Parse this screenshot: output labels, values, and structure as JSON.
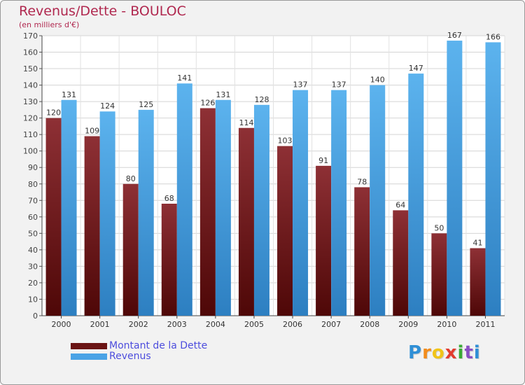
{
  "chart_data": {
    "type": "bar",
    "title": "Revenus/Dette - BOULOC",
    "subtitle": "(en milliers d'€)",
    "categories": [
      "2000",
      "2001",
      "2002",
      "2003",
      "2004",
      "2005",
      "2006",
      "2007",
      "2008",
      "2009",
      "2010",
      "2011"
    ],
    "series": [
      {
        "name": "Montant de la Dette",
        "color": "#7a1c1c",
        "values": [
          120,
          109,
          80,
          68,
          126,
          114,
          103,
          91,
          78,
          64,
          50,
          41
        ]
      },
      {
        "name": "Revenus",
        "color": "#4aa3e6",
        "values": [
          131,
          124,
          125,
          141,
          131,
          128,
          137,
          137,
          140,
          147,
          167,
          166
        ]
      }
    ],
    "ylim": [
      0,
      170
    ],
    "yticks": [
      0,
      10,
      20,
      30,
      40,
      50,
      60,
      70,
      80,
      90,
      100,
      110,
      120,
      130,
      140,
      150,
      160,
      170
    ],
    "grid": true,
    "legend_position": "bottom-left"
  },
  "brand": {
    "letters": [
      "P",
      "r",
      "o",
      "x",
      "i",
      "t",
      "i"
    ],
    "colors": [
      "#2f8fd6",
      "#f28c1c",
      "#f0c419",
      "#e23c2f",
      "#3aaa35",
      "#8a4fc4",
      "#2f8fd6"
    ]
  }
}
